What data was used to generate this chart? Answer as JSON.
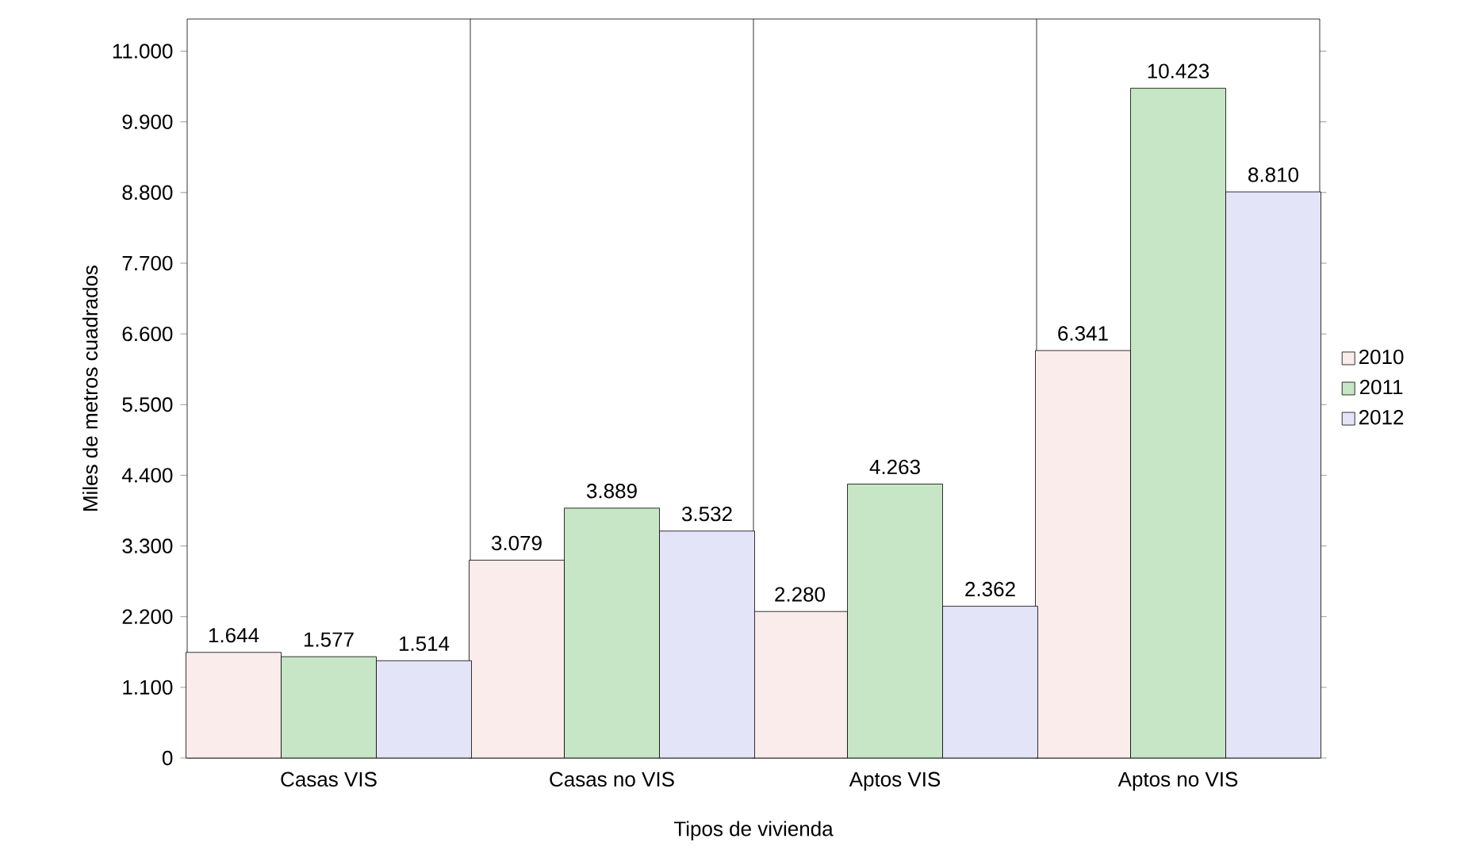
{
  "chart_data": {
    "type": "bar",
    "xlabel": "Tipos de vivienda",
    "ylabel": "Miles de metros cuadrados",
    "categories": [
      "Casas VIS",
      "Casas no VIS",
      "Aptos VIS",
      "Aptos  no VIS"
    ],
    "series": [
      {
        "name": "2010",
        "color": "#fbecec",
        "values": [
          1644,
          3079,
          2280,
          6341
        ],
        "value_labels": [
          "1.644",
          "3.079",
          "2.280",
          "6.341"
        ]
      },
      {
        "name": "2011",
        "color": "#c6e6c6",
        "values": [
          1577,
          3889,
          4263,
          10423
        ],
        "value_labels": [
          "1.577",
          "3.889",
          "4.263",
          "10.423"
        ]
      },
      {
        "name": "2012",
        "color": "#e4e4f8",
        "values": [
          1514,
          3532,
          2362,
          8810
        ],
        "value_labels": [
          "1.514",
          "3.532",
          "2.362",
          "8.810"
        ]
      }
    ],
    "ylim": [
      0,
      11500
    ],
    "yticks": [
      {
        "value": 0,
        "label": "0"
      },
      {
        "value": 1100,
        "label": "1.100"
      },
      {
        "value": 2200,
        "label": "2.200"
      },
      {
        "value": 3300,
        "label": "3.300"
      },
      {
        "value": 4400,
        "label": "4.400"
      },
      {
        "value": 5500,
        "label": "5.500"
      },
      {
        "value": 6600,
        "label": "6.600"
      },
      {
        "value": 7700,
        "label": "7.700"
      },
      {
        "value": 8800,
        "label": "8.800"
      },
      {
        "value": 9900,
        "label": "9.900"
      },
      {
        "value": 11000,
        "label": "11.000"
      }
    ],
    "grid": "x",
    "legend": "right"
  }
}
